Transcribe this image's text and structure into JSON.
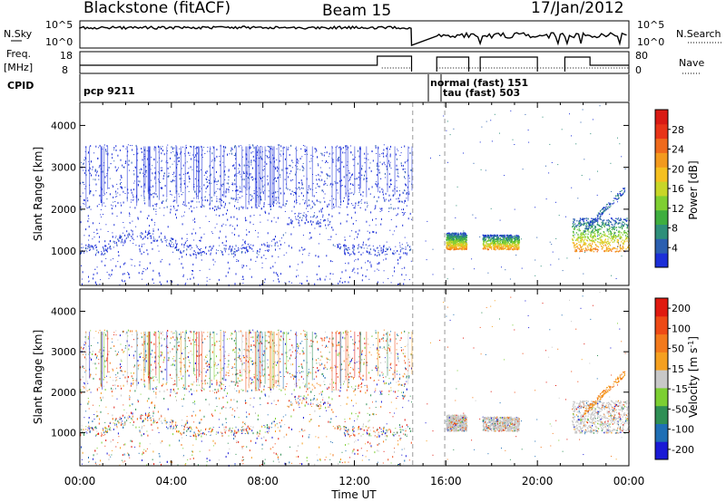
{
  "header": {
    "station": "Blackstone (fitACF)",
    "beam": "Beam 15",
    "date": "17/Jan/2012"
  },
  "strip_labels": {
    "nsky": "N.Sky",
    "nsky_ticks": [
      "10^5",
      "10^0"
    ],
    "nsearch": "N.Search",
    "nsearch_ticks": [
      "10^5",
      "10^0"
    ],
    "freq_top": "Freq.",
    "freq_unit": "[MHz]",
    "freq_ticks": [
      "18",
      "8"
    ],
    "nave": "Nave",
    "nave_ticks": [
      "80",
      "0"
    ],
    "cpid": "CPID"
  },
  "cpid_labels": [
    "pcp 9211",
    "normal (fast) 151",
    "tau (fast) 503"
  ],
  "chart_data": [
    {
      "type": "heatmap",
      "panel": "power",
      "ylabel": "Slant Range [km]",
      "xlabel": "Time UT",
      "x_ticks": [
        "00:00",
        "04:00",
        "08:00",
        "12:00",
        "16:00",
        "20:00",
        "00:00"
      ],
      "x_range_hours": [
        0,
        24
      ],
      "y_ticks": [
        "1000",
        "2000",
        "3000",
        "4000"
      ],
      "y_range_km": [
        180,
        4550
      ],
      "colorbar": {
        "label": "Power [dB]",
        "ticks": [
          "4",
          "8",
          "12",
          "16",
          "20",
          "24",
          "28"
        ],
        "range": [
          0,
          30
        ],
        "colors": [
          "#1c2fd8",
          "#2b5fb0",
          "#2f8f7a",
          "#3fae3f",
          "#7fcf32",
          "#c8d628",
          "#f5c020",
          "#f39a1e",
          "#ef6a1c",
          "#e83418",
          "#d91a14"
        ]
      }
    },
    {
      "type": "heatmap",
      "panel": "velocity",
      "ylabel": "Slant Range [km]",
      "xlabel": "Time UT",
      "x_ticks": [
        "00:00",
        "04:00",
        "08:00",
        "12:00",
        "16:00",
        "20:00",
        "00:00"
      ],
      "x_range_hours": [
        0,
        24
      ],
      "y_ticks": [
        "1000",
        "2000",
        "3000",
        "4000"
      ],
      "y_range_km": [
        180,
        4550
      ],
      "colorbar": {
        "label": "Velocity [m s-1]",
        "label_main": "Velocity",
        "label_unit": "[m s",
        "label_exp": "-1",
        "label_close": "]",
        "ticks": [
          "200",
          "100",
          "50",
          "15",
          "-15",
          "-50",
          "-100",
          "-200"
        ],
        "colors": [
          "#1a1ad6",
          "#1f6fb5",
          "#2f8f55",
          "#7ccf32",
          "#c8c8c8",
          "#f5a020",
          "#f37a1c",
          "#ee4a16",
          "#e01a10"
        ]
      }
    }
  ],
  "annotations": {
    "dashed_lines_hours": [
      14.55,
      15.95
    ]
  }
}
